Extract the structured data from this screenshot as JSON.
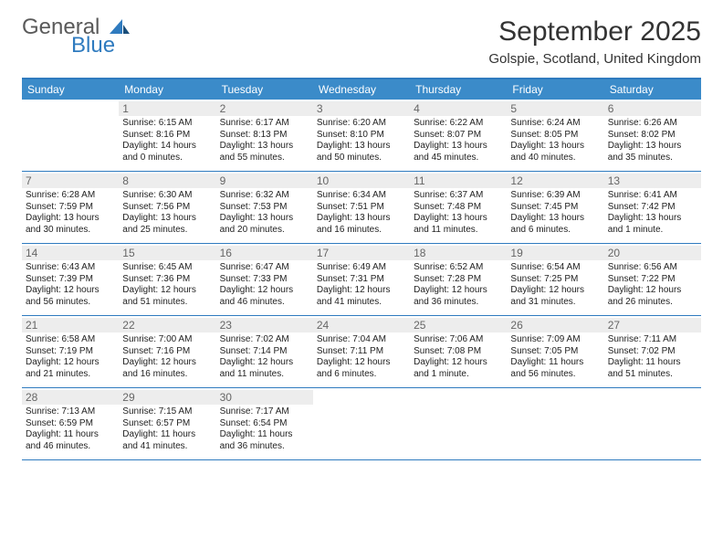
{
  "logo": {
    "text1": "General",
    "text2": "Blue"
  },
  "title": "September 2025",
  "location": "Golspie, Scotland, United Kingdom",
  "header_color": "#3b8bc9",
  "rule_color": "#2f7bbf",
  "daynum_bg": "#ededed",
  "dow": [
    "Sunday",
    "Monday",
    "Tuesday",
    "Wednesday",
    "Thursday",
    "Friday",
    "Saturday"
  ],
  "weeks": [
    [
      {
        "n": "",
        "sr": "",
        "ss": "",
        "dl": ""
      },
      {
        "n": "1",
        "sr": "Sunrise: 6:15 AM",
        "ss": "Sunset: 8:16 PM",
        "dl": "Daylight: 14 hours and 0 minutes."
      },
      {
        "n": "2",
        "sr": "Sunrise: 6:17 AM",
        "ss": "Sunset: 8:13 PM",
        "dl": "Daylight: 13 hours and 55 minutes."
      },
      {
        "n": "3",
        "sr": "Sunrise: 6:20 AM",
        "ss": "Sunset: 8:10 PM",
        "dl": "Daylight: 13 hours and 50 minutes."
      },
      {
        "n": "4",
        "sr": "Sunrise: 6:22 AM",
        "ss": "Sunset: 8:07 PM",
        "dl": "Daylight: 13 hours and 45 minutes."
      },
      {
        "n": "5",
        "sr": "Sunrise: 6:24 AM",
        "ss": "Sunset: 8:05 PM",
        "dl": "Daylight: 13 hours and 40 minutes."
      },
      {
        "n": "6",
        "sr": "Sunrise: 6:26 AM",
        "ss": "Sunset: 8:02 PM",
        "dl": "Daylight: 13 hours and 35 minutes."
      }
    ],
    [
      {
        "n": "7",
        "sr": "Sunrise: 6:28 AM",
        "ss": "Sunset: 7:59 PM",
        "dl": "Daylight: 13 hours and 30 minutes."
      },
      {
        "n": "8",
        "sr": "Sunrise: 6:30 AM",
        "ss": "Sunset: 7:56 PM",
        "dl": "Daylight: 13 hours and 25 minutes."
      },
      {
        "n": "9",
        "sr": "Sunrise: 6:32 AM",
        "ss": "Sunset: 7:53 PM",
        "dl": "Daylight: 13 hours and 20 minutes."
      },
      {
        "n": "10",
        "sr": "Sunrise: 6:34 AM",
        "ss": "Sunset: 7:51 PM",
        "dl": "Daylight: 13 hours and 16 minutes."
      },
      {
        "n": "11",
        "sr": "Sunrise: 6:37 AM",
        "ss": "Sunset: 7:48 PM",
        "dl": "Daylight: 13 hours and 11 minutes."
      },
      {
        "n": "12",
        "sr": "Sunrise: 6:39 AM",
        "ss": "Sunset: 7:45 PM",
        "dl": "Daylight: 13 hours and 6 minutes."
      },
      {
        "n": "13",
        "sr": "Sunrise: 6:41 AM",
        "ss": "Sunset: 7:42 PM",
        "dl": "Daylight: 13 hours and 1 minute."
      }
    ],
    [
      {
        "n": "14",
        "sr": "Sunrise: 6:43 AM",
        "ss": "Sunset: 7:39 PM",
        "dl": "Daylight: 12 hours and 56 minutes."
      },
      {
        "n": "15",
        "sr": "Sunrise: 6:45 AM",
        "ss": "Sunset: 7:36 PM",
        "dl": "Daylight: 12 hours and 51 minutes."
      },
      {
        "n": "16",
        "sr": "Sunrise: 6:47 AM",
        "ss": "Sunset: 7:33 PM",
        "dl": "Daylight: 12 hours and 46 minutes."
      },
      {
        "n": "17",
        "sr": "Sunrise: 6:49 AM",
        "ss": "Sunset: 7:31 PM",
        "dl": "Daylight: 12 hours and 41 minutes."
      },
      {
        "n": "18",
        "sr": "Sunrise: 6:52 AM",
        "ss": "Sunset: 7:28 PM",
        "dl": "Daylight: 12 hours and 36 minutes."
      },
      {
        "n": "19",
        "sr": "Sunrise: 6:54 AM",
        "ss": "Sunset: 7:25 PM",
        "dl": "Daylight: 12 hours and 31 minutes."
      },
      {
        "n": "20",
        "sr": "Sunrise: 6:56 AM",
        "ss": "Sunset: 7:22 PM",
        "dl": "Daylight: 12 hours and 26 minutes."
      }
    ],
    [
      {
        "n": "21",
        "sr": "Sunrise: 6:58 AM",
        "ss": "Sunset: 7:19 PM",
        "dl": "Daylight: 12 hours and 21 minutes."
      },
      {
        "n": "22",
        "sr": "Sunrise: 7:00 AM",
        "ss": "Sunset: 7:16 PM",
        "dl": "Daylight: 12 hours and 16 minutes."
      },
      {
        "n": "23",
        "sr": "Sunrise: 7:02 AM",
        "ss": "Sunset: 7:14 PM",
        "dl": "Daylight: 12 hours and 11 minutes."
      },
      {
        "n": "24",
        "sr": "Sunrise: 7:04 AM",
        "ss": "Sunset: 7:11 PM",
        "dl": "Daylight: 12 hours and 6 minutes."
      },
      {
        "n": "25",
        "sr": "Sunrise: 7:06 AM",
        "ss": "Sunset: 7:08 PM",
        "dl": "Daylight: 12 hours and 1 minute."
      },
      {
        "n": "26",
        "sr": "Sunrise: 7:09 AM",
        "ss": "Sunset: 7:05 PM",
        "dl": "Daylight: 11 hours and 56 minutes."
      },
      {
        "n": "27",
        "sr": "Sunrise: 7:11 AM",
        "ss": "Sunset: 7:02 PM",
        "dl": "Daylight: 11 hours and 51 minutes."
      }
    ],
    [
      {
        "n": "28",
        "sr": "Sunrise: 7:13 AM",
        "ss": "Sunset: 6:59 PM",
        "dl": "Daylight: 11 hours and 46 minutes."
      },
      {
        "n": "29",
        "sr": "Sunrise: 7:15 AM",
        "ss": "Sunset: 6:57 PM",
        "dl": "Daylight: 11 hours and 41 minutes."
      },
      {
        "n": "30",
        "sr": "Sunrise: 7:17 AM",
        "ss": "Sunset: 6:54 PM",
        "dl": "Daylight: 11 hours and 36 minutes."
      },
      {
        "n": "",
        "sr": "",
        "ss": "",
        "dl": ""
      },
      {
        "n": "",
        "sr": "",
        "ss": "",
        "dl": ""
      },
      {
        "n": "",
        "sr": "",
        "ss": "",
        "dl": ""
      },
      {
        "n": "",
        "sr": "",
        "ss": "",
        "dl": ""
      }
    ]
  ]
}
